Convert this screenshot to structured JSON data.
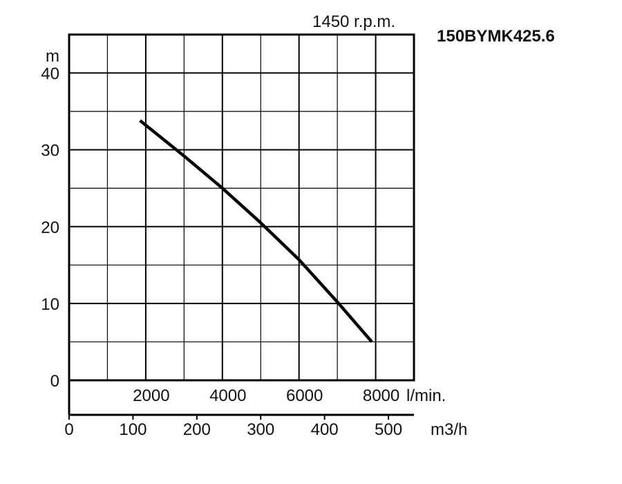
{
  "chart_data": {
    "type": "line",
    "title": "150BYMK425.6",
    "speed_label": "1450 r.p.m.",
    "ylabel": "m",
    "x_primary_unit": "l/min.",
    "x_secondary_unit": "m3/h",
    "ylim": [
      0,
      40
    ],
    "xlim_lpm": [
      0,
      9000
    ],
    "y_ticks": [
      "0",
      "10",
      "20",
      "30",
      "40"
    ],
    "x_primary_ticks": [
      "2000",
      "4000",
      "6000",
      "8000"
    ],
    "x_secondary_ticks": [
      "0",
      "100",
      "200",
      "300",
      "400",
      "500"
    ],
    "grid": true,
    "series": [
      {
        "x": [
          1850,
          3000,
          4000,
          5000,
          6000,
          7000,
          7900
        ],
        "y": [
          33.8,
          29.2,
          25.0,
          20.5,
          15.7,
          10.2,
          5.0
        ]
      }
    ]
  }
}
